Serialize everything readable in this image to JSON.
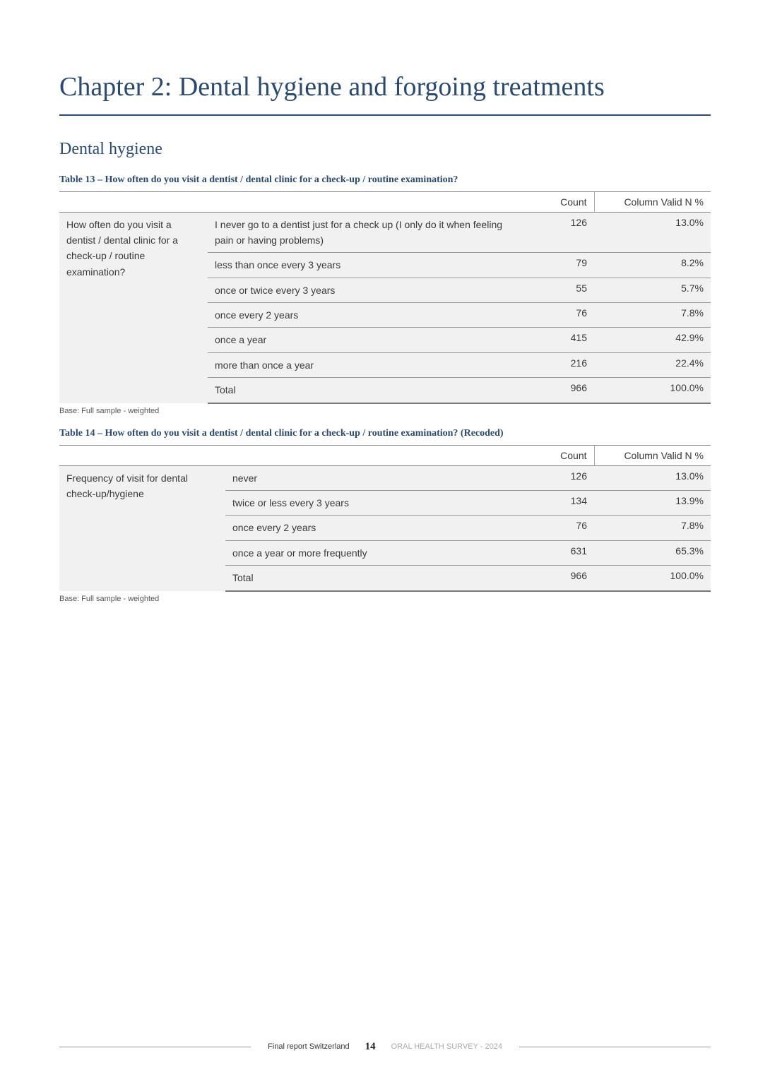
{
  "chapter_title": "Chapter 2: Dental hygiene and forgoing treatments",
  "section_heading": "Dental hygiene",
  "table13": {
    "caption": "Table 13 – How often do you visit a dentist / dental clinic for a check-up / routine examination?",
    "col_count": "Count",
    "col_pct": "Column Valid N %",
    "question": "How often do you visit a dentist / dental clinic for a check-up / routine examination?",
    "rows": [
      {
        "response": "I never go to a dentist just for a check up (I only do it when feeling pain or having problems)",
        "count": "126",
        "pct": "13.0%"
      },
      {
        "response": "less than once every 3 years",
        "count": "79",
        "pct": "8.2%"
      },
      {
        "response": "once or twice every 3 years",
        "count": "55",
        "pct": "5.7%"
      },
      {
        "response": "once every 2 years",
        "count": "76",
        "pct": "7.8%"
      },
      {
        "response": "once a year",
        "count": "415",
        "pct": "42.9%"
      },
      {
        "response": "more than once a year",
        "count": "216",
        "pct": "22.4%"
      },
      {
        "response": "Total",
        "count": "966",
        "pct": "100.0%"
      }
    ],
    "base_note": "Base: Full sample - weighted"
  },
  "table14": {
    "caption": "Table 14 – How often do you visit a dentist / dental clinic for a check-up / routine examination? (Recoded)",
    "col_count": "Count",
    "col_pct": "Column Valid N %",
    "question": "Frequency of visit for dental check-up/hygiene",
    "rows": [
      {
        "response": "never",
        "count": "126",
        "pct": "13.0%"
      },
      {
        "response": "twice or less every 3 years",
        "count": "134",
        "pct": "13.9%"
      },
      {
        "response": "once every 2 years",
        "count": "76",
        "pct": "7.8%"
      },
      {
        "response": "once a year or more frequently",
        "count": "631",
        "pct": "65.3%"
      },
      {
        "response": "Total",
        "count": "966",
        "pct": "100.0%"
      }
    ],
    "base_note": "Base: Full sample - weighted"
  },
  "footer": {
    "left": "Final report Switzerland",
    "page": "14",
    "right": "ORAL HEALTH SURVEY - 2024"
  }
}
